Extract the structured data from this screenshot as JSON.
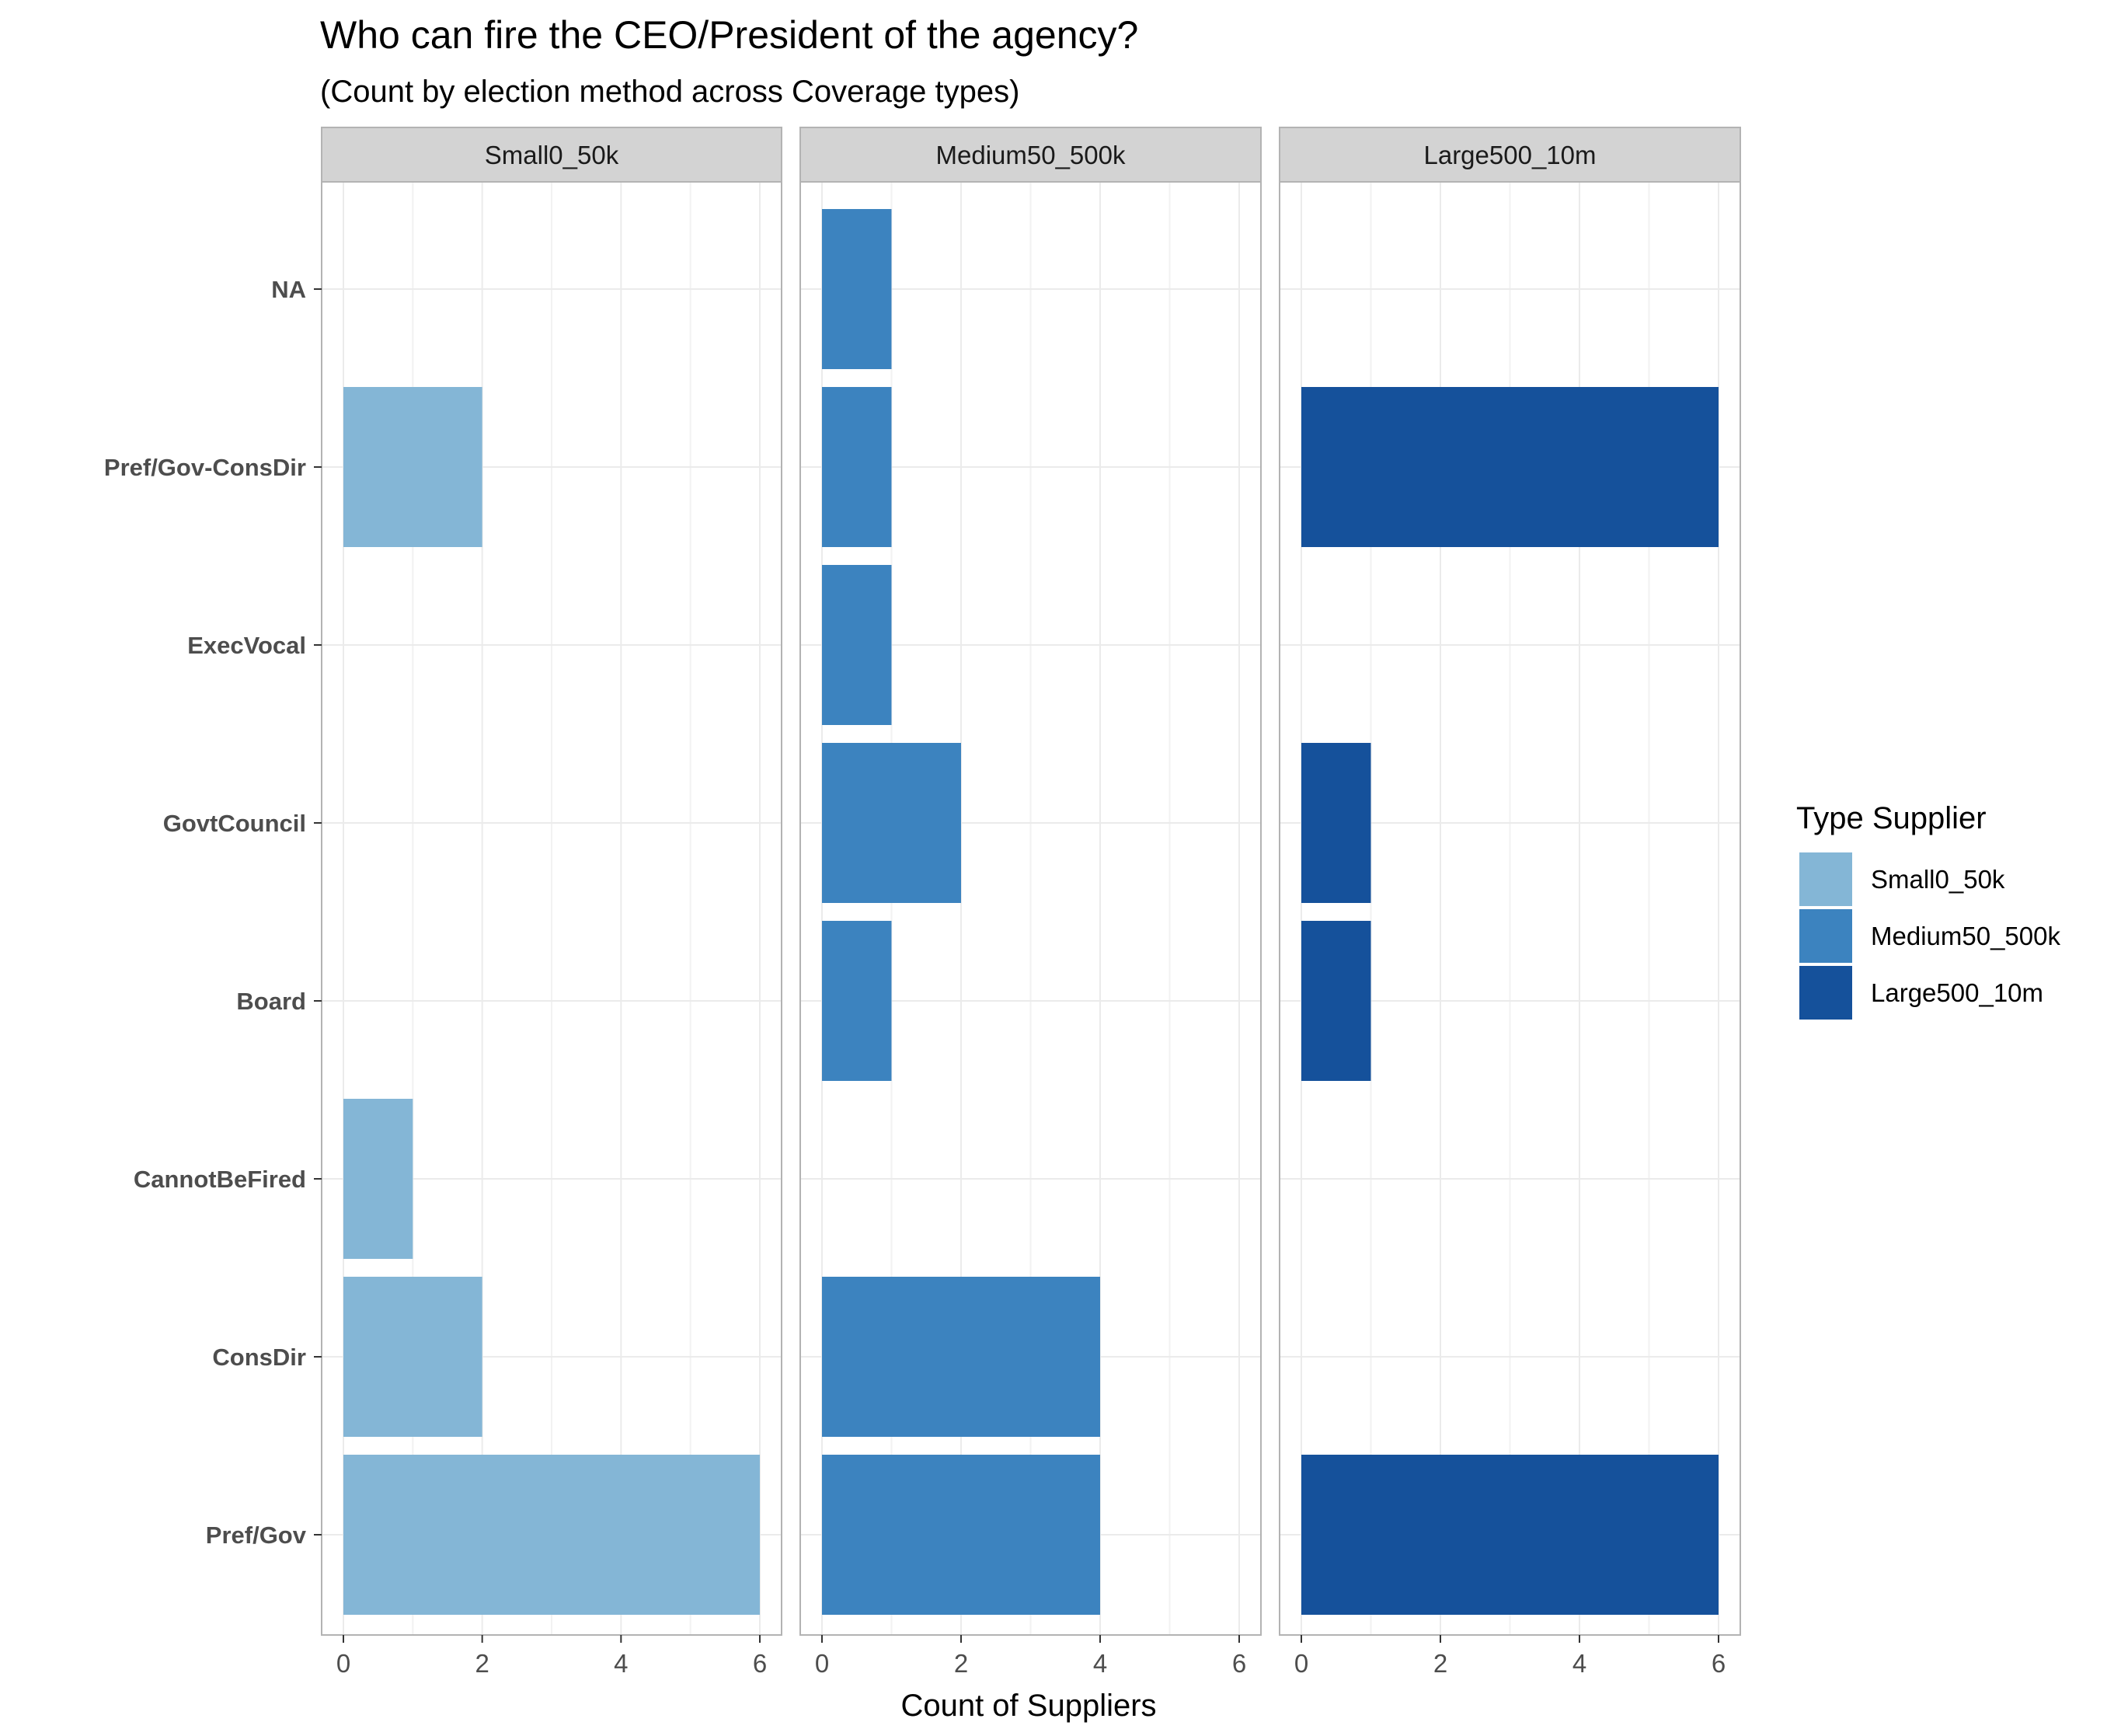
{
  "chart_data": {
    "type": "bar",
    "orientation": "horizontal",
    "title": "Who can fire the CEO/President of the agency?",
    "subtitle": "(Count by election method across Coverage types)",
    "xlabel": "Count of Suppliers",
    "ylabel": "",
    "xlim": [
      0,
      6
    ],
    "x_ticks": [
      0,
      2,
      4,
      6
    ],
    "categories": [
      "NA",
      "Pref/Gov-ConsDir",
      "ExecVocal",
      "GovtCouncil",
      "Board",
      "CannotBeFired",
      "ConsDir",
      "Pref/Gov"
    ],
    "grid": true,
    "legend": {
      "title": "Type Supplier",
      "placement": "right"
    },
    "series": [
      {
        "name": "Small0_50k",
        "color": "#84b6d6",
        "values": [
          0,
          2,
          0,
          0,
          0,
          1,
          2,
          6
        ]
      },
      {
        "name": "Medium50_500k",
        "color": "#3c83bf",
        "values": [
          1,
          1,
          1,
          2,
          1,
          0,
          4,
          4
        ]
      },
      {
        "name": "Large500_10m",
        "color": "#15519b",
        "values": [
          0,
          6,
          0,
          1,
          1,
          0,
          0,
          6
        ]
      }
    ]
  }
}
